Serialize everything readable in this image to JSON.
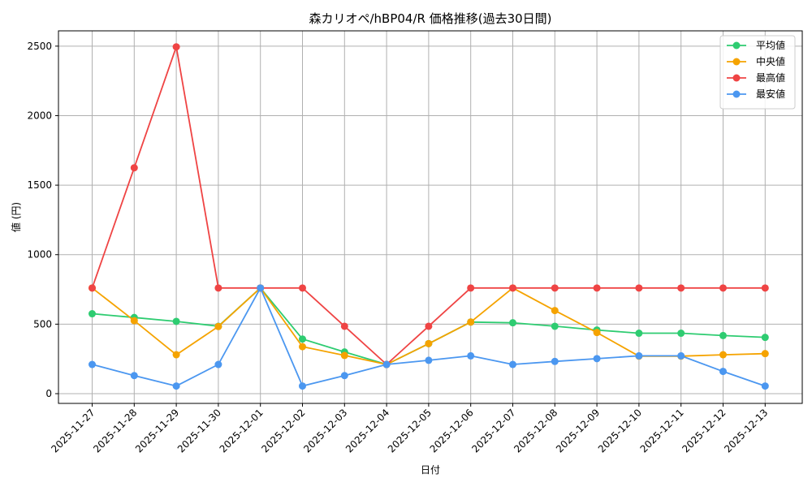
{
  "chart_data": {
    "type": "line",
    "title": "森カリオペ/hBP04/R 価格推移(過去30日間)",
    "xlabel": "日付",
    "ylabel": "値 (円)",
    "ylim": [
      -70,
      2610
    ],
    "yticks": [
      0,
      500,
      1000,
      1500,
      2000,
      2500
    ],
    "grid": true,
    "legend_position": "top-right",
    "categories": [
      "2025-11-27",
      "2025-11-28",
      "2025-11-29",
      "2025-11-30",
      "2025-12-01",
      "2025-12-02",
      "2025-12-03",
      "2025-12-04",
      "2025-12-05",
      "2025-12-06",
      "2025-12-07",
      "2025-12-08",
      "2025-12-09",
      "2025-12-10",
      "2025-12-11",
      "2025-12-12",
      "2025-12-13"
    ],
    "series": [
      {
        "name": "平均値",
        "color": "#2ecc71",
        "values": [
          575,
          548,
          520,
          485,
          760,
          393,
          300,
          210,
          360,
          515,
          510,
          485,
          458,
          435,
          435,
          418,
          405
        ]
      },
      {
        "name": "中央値",
        "color": "#f5a300",
        "values": [
          760,
          525,
          280,
          483,
          760,
          338,
          275,
          210,
          360,
          515,
          760,
          598,
          440,
          270,
          270,
          280,
          288
        ]
      },
      {
        "name": "最高値",
        "color": "#ef4444",
        "values": [
          760,
          1625,
          2495,
          760,
          760,
          760,
          485,
          210,
          485,
          760,
          760,
          760,
          760,
          760,
          760,
          760,
          760
        ]
      },
      {
        "name": "最安値",
        "color": "#4b97f0",
        "values": [
          210,
          130,
          55,
          210,
          760,
          55,
          130,
          210,
          240,
          272,
          210,
          232,
          252,
          272,
          272,
          160,
          55
        ]
      }
    ]
  }
}
